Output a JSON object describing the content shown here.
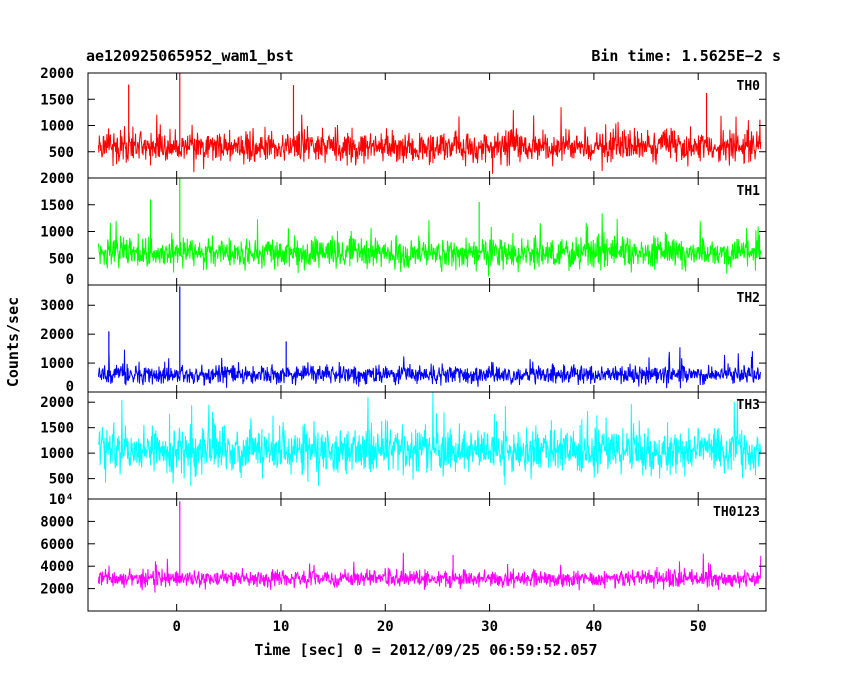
{
  "chart_data": {
    "type": "line",
    "title": "ae120925065952_wam1_bst",
    "bin_time": "Bin time: 1.5625E−2 s",
    "xlabel": "Time [sec] 0 = 2012/09/25 06:59:52.057",
    "ylabel": "Counts/sec",
    "xlim": [
      -8.5,
      56.5
    ],
    "data_x_range": [
      -7.5,
      56.0
    ],
    "x_ticks": [
      0,
      10,
      20,
      30,
      40,
      50
    ],
    "panels": [
      {
        "name": "TH0",
        "color": "#ff0000",
        "ylim": [
          0,
          2000
        ],
        "y_ticks": [
          500,
          1000,
          1500,
          2000
        ],
        "y_tick_labels": [
          "500",
          "1000",
          "1500",
          "2000"
        ],
        "baseline_mean": 600,
        "typical_range": [
          100,
          1300
        ],
        "spikes": [
          {
            "x": 0.3,
            "y": 2050
          },
          {
            "x": -4.6,
            "y": 1780
          },
          {
            "x": 11.2,
            "y": 1770
          },
          {
            "x": 50.8,
            "y": 1620
          }
        ]
      },
      {
        "name": "TH1",
        "color": "#00ff00",
        "ylim": [
          0,
          2000
        ],
        "y_ticks": [
          0,
          500,
          1000,
          1500,
          2000
        ],
        "y_tick_labels": [
          "0",
          "500",
          "1000",
          "1500",
          "2000"
        ],
        "baseline_mean": 600,
        "typical_range": [
          100,
          1200
        ],
        "spikes": [
          {
            "x": 0.3,
            "y": 2000
          },
          {
            "x": -2.5,
            "y": 1600
          },
          {
            "x": 29.0,
            "y": 1550
          }
        ]
      },
      {
        "name": "TH2",
        "color": "#0000ff",
        "ylim": [
          0,
          3700
        ],
        "y_ticks": [
          0,
          1000,
          2000,
          3000
        ],
        "y_tick_labels": [
          "0",
          "1000",
          "2000",
          "3000"
        ],
        "baseline_mean": 600,
        "typical_range": [
          100,
          1400
        ],
        "spikes": [
          {
            "x": 0.3,
            "y": 3650
          },
          {
            "x": -6.5,
            "y": 2100
          },
          {
            "x": 10.5,
            "y": 1750
          }
        ]
      },
      {
        "name": "TH3",
        "color": "#00ffff",
        "ylim": [
          100,
          2200
        ],
        "y_ticks": [
          500,
          1000,
          1500,
          2000
        ],
        "y_tick_labels": [
          "500",
          "1000",
          "1500",
          "2000"
        ],
        "extra_tick_label": "10⁴",
        "baseline_mean": 1050,
        "typical_range": [
          300,
          2100
        ],
        "spikes": []
      },
      {
        "name": "TH0123",
        "color": "#ff00ff",
        "ylim": [
          0,
          10000
        ],
        "y_ticks": [
          2000,
          4000,
          6000,
          8000
        ],
        "y_tick_labels": [
          "2000",
          "4000",
          "6000",
          "8000"
        ],
        "baseline_mean": 2900,
        "typical_range": [
          1500,
          4500
        ],
        "spikes": [
          {
            "x": 0.3,
            "y": 9800
          },
          {
            "x": 26.5,
            "y": 5000
          }
        ]
      }
    ]
  }
}
